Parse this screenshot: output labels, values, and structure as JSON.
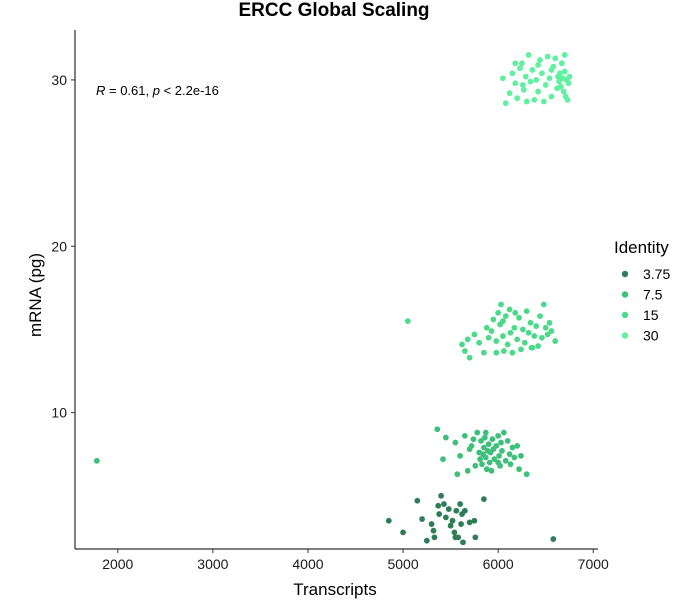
{
  "chart_data": {
    "type": "scatter",
    "title": "ERCC Global Scaling",
    "xlabel": "Transcripts",
    "ylabel": "mRNA (pg)",
    "xlim": [
      1550,
      7050
    ],
    "ylim": [
      1.8,
      33.0
    ],
    "x_ticks": [
      2000,
      3000,
      4000,
      5000,
      6000,
      7000
    ],
    "y_ticks": [
      10,
      20,
      30
    ],
    "grid": false,
    "legend": {
      "title": "Identity",
      "placement": "right",
      "entries": [
        "3.75",
        "7.5",
        "15",
        "30"
      ]
    },
    "annotation": {
      "r_symbol": "R",
      "r_value": " = 0.61, ",
      "p_symbol": "p",
      "p_value": " < 2.2e-16"
    },
    "series": [
      {
        "name": "3.75",
        "color": "#2e7d57",
        "points": [
          [
            4850,
            3.5
          ],
          [
            5000,
            2.8
          ],
          [
            5150,
            4.7
          ],
          [
            5200,
            3.6
          ],
          [
            5250,
            2.3
          ],
          [
            5300,
            3.3
          ],
          [
            5320,
            2.9
          ],
          [
            5330,
            2.5
          ],
          [
            5370,
            4.4
          ],
          [
            5380,
            3.9
          ],
          [
            5400,
            5.0
          ],
          [
            5430,
            4.5
          ],
          [
            5450,
            3.7
          ],
          [
            5480,
            4.2
          ],
          [
            5500,
            3.2
          ],
          [
            5520,
            3.5
          ],
          [
            5540,
            2.8
          ],
          [
            5560,
            4.1
          ],
          [
            5580,
            2.5
          ],
          [
            5600,
            4.5
          ],
          [
            5610,
            3.3
          ],
          [
            5620,
            3.9
          ],
          [
            5630,
            2.2
          ],
          [
            5650,
            4.1
          ],
          [
            5700,
            3.4
          ],
          [
            5750,
            3.5
          ],
          [
            5760,
            2.5
          ],
          [
            5850,
            4.8
          ],
          [
            6580,
            2.4
          ],
          [
            5550,
            2.5
          ]
        ]
      },
      {
        "name": "7.5",
        "color": "#3ebf7a",
        "points": [
          [
            1780,
            7.1
          ],
          [
            5360,
            9.0
          ],
          [
            5420,
            7.2
          ],
          [
            5450,
            8.5
          ],
          [
            5550,
            8.2
          ],
          [
            5570,
            6.3
          ],
          [
            5600,
            7.4
          ],
          [
            5650,
            8.6
          ],
          [
            5680,
            6.5
          ],
          [
            5700,
            7.8
          ],
          [
            5720,
            8.0
          ],
          [
            5740,
            8.4
          ],
          [
            5760,
            6.8
          ],
          [
            5780,
            8.8
          ],
          [
            5800,
            7.6
          ],
          [
            5810,
            7.2
          ],
          [
            5820,
            8.3
          ],
          [
            5830,
            6.9
          ],
          [
            5840,
            7.5
          ],
          [
            5850,
            7.9
          ],
          [
            5860,
            8.5
          ],
          [
            5870,
            7.3
          ],
          [
            5880,
            6.6
          ],
          [
            5890,
            7.7
          ],
          [
            5900,
            8.1
          ],
          [
            5910,
            7.0
          ],
          [
            5920,
            7.6
          ],
          [
            5930,
            6.5
          ],
          [
            5940,
            8.4
          ],
          [
            5950,
            7.8
          ],
          [
            5960,
            7.2
          ],
          [
            5980,
            8.0
          ],
          [
            6000,
            8.6
          ],
          [
            6010,
            7.4
          ],
          [
            6020,
            6.8
          ],
          [
            6030,
            8.2
          ],
          [
            6040,
            7.7
          ],
          [
            6060,
            8.8
          ],
          [
            6080,
            7.1
          ],
          [
            6100,
            8.3
          ],
          [
            6120,
            7.5
          ],
          [
            6130,
            6.9
          ],
          [
            6150,
            7.9
          ],
          [
            6170,
            7.3
          ],
          [
            6200,
            8.0
          ],
          [
            6220,
            6.6
          ],
          [
            6240,
            7.4
          ],
          [
            6300,
            6.3
          ],
          [
            6000,
            7.0
          ],
          [
            5870,
            8.8
          ]
        ]
      },
      {
        "name": "15",
        "color": "#4cd98a",
        "points": [
          [
            5050,
            15.5
          ],
          [
            5620,
            14.1
          ],
          [
            5650,
            13.7
          ],
          [
            5680,
            14.4
          ],
          [
            5700,
            13.3
          ],
          [
            5750,
            14.7
          ],
          [
            5800,
            14.2
          ],
          [
            5850,
            13.6
          ],
          [
            5880,
            15.1
          ],
          [
            5900,
            14.5
          ],
          [
            5930,
            14.9
          ],
          [
            5950,
            15.6
          ],
          [
            5980,
            14.3
          ],
          [
            6000,
            16.0
          ],
          [
            6020,
            15.3
          ],
          [
            6030,
            16.5
          ],
          [
            6050,
            14.6
          ],
          [
            6060,
            13.7
          ],
          [
            6080,
            15.8
          ],
          [
            6100,
            14.1
          ],
          [
            6120,
            16.2
          ],
          [
            6130,
            14.8
          ],
          [
            6150,
            13.6
          ],
          [
            6170,
            15.1
          ],
          [
            6200,
            14.4
          ],
          [
            6220,
            15.7
          ],
          [
            6240,
            13.8
          ],
          [
            6260,
            15.0
          ],
          [
            6280,
            14.2
          ],
          [
            6300,
            16.1
          ],
          [
            6320,
            14.8
          ],
          [
            6340,
            15.4
          ],
          [
            6360,
            13.9
          ],
          [
            6380,
            14.6
          ],
          [
            6400,
            15.2
          ],
          [
            6420,
            14.0
          ],
          [
            6440,
            15.8
          ],
          [
            6460,
            14.5
          ],
          [
            6480,
            16.5
          ],
          [
            6500,
            15.1
          ],
          [
            6520,
            14.7
          ],
          [
            6540,
            15.4
          ],
          [
            6560,
            14.9
          ],
          [
            6600,
            14.3
          ],
          [
            6050,
            15.5
          ],
          [
            6180,
            16.0
          ],
          [
            5980,
            13.6
          ],
          [
            6350,
            13.9
          ]
        ]
      },
      {
        "name": "30",
        "color": "#5ff0a0",
        "points": [
          [
            6050,
            30.1
          ],
          [
            6080,
            28.6
          ],
          [
            6120,
            29.2
          ],
          [
            6150,
            30.4
          ],
          [
            6180,
            29.8
          ],
          [
            6200,
            28.9
          ],
          [
            6230,
            30.7
          ],
          [
            6250,
            31.0
          ],
          [
            6270,
            29.4
          ],
          [
            6290,
            30.2
          ],
          [
            6300,
            28.7
          ],
          [
            6320,
            31.5
          ],
          [
            6340,
            29.9
          ],
          [
            6360,
            30.6
          ],
          [
            6380,
            28.8
          ],
          [
            6400,
            30.0
          ],
          [
            6420,
            29.3
          ],
          [
            6440,
            31.2
          ],
          [
            6460,
            30.4
          ],
          [
            6480,
            28.7
          ],
          [
            6500,
            29.7
          ],
          [
            6520,
            31.4
          ],
          [
            6540,
            30.1
          ],
          [
            6560,
            29.0
          ],
          [
            6580,
            30.8
          ],
          [
            6600,
            31.3
          ],
          [
            6620,
            29.5
          ],
          [
            6630,
            30.2
          ],
          [
            6640,
            29.9
          ],
          [
            6650,
            30.4
          ],
          [
            6660,
            29.6
          ],
          [
            6670,
            31.0
          ],
          [
            6680,
            30.1
          ],
          [
            6690,
            29.3
          ],
          [
            6700,
            30.5
          ],
          [
            6710,
            29.0
          ],
          [
            6720,
            30.0
          ],
          [
            6730,
            28.8
          ],
          [
            6740,
            29.8
          ],
          [
            6750,
            30.2
          ],
          [
            6700,
            31.5
          ],
          [
            6560,
            30.6
          ],
          [
            6420,
            30.9
          ],
          [
            6260,
            29.7
          ],
          [
            6180,
            31.0
          ]
        ]
      }
    ]
  }
}
